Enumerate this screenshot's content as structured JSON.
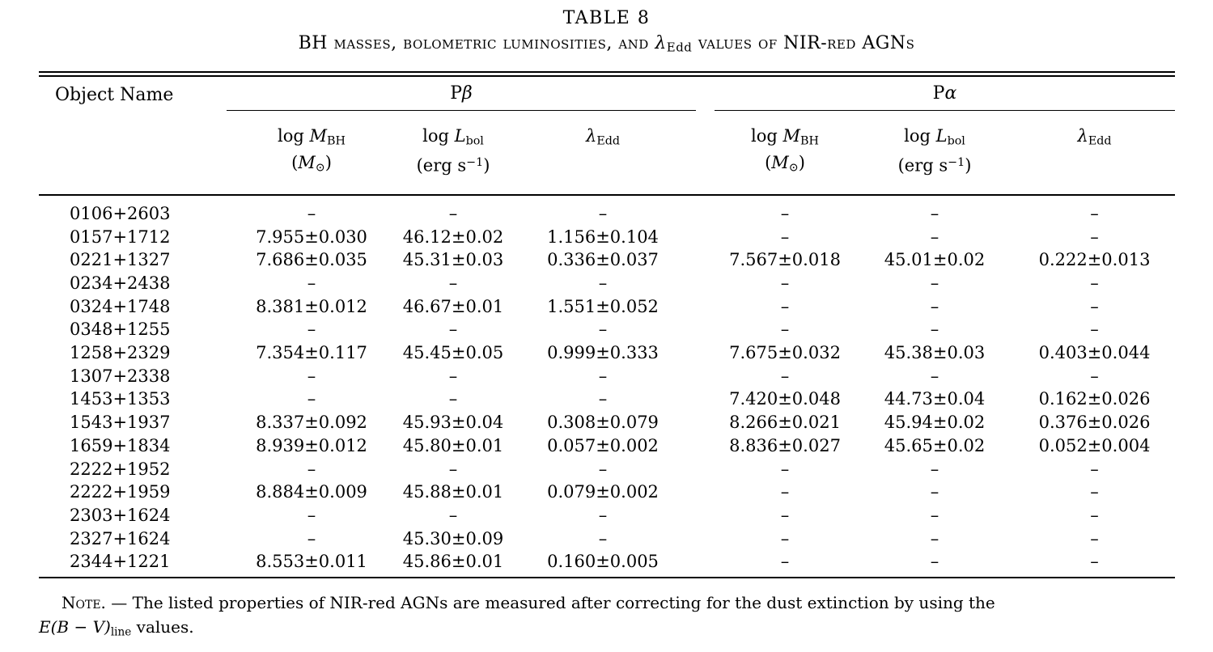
{
  "title": "TABLE 8",
  "subtitle": {
    "pre": "BH masses, bolometric luminosities, and ",
    "lambda": "λ",
    "lambda_sub": "Edd",
    "post": " values of NIR-red AGNs"
  },
  "columns": {
    "object": "Object Name",
    "group_pb": {
      "p": "P",
      "greek": "β"
    },
    "group_pa": {
      "p": "P",
      "greek": "α"
    },
    "mbh": {
      "log": "log ",
      "sym": "M",
      "sub": "BH"
    },
    "mbh_unit": {
      "open": "(",
      "sym": "M",
      "sub": "⊙",
      "close": ")"
    },
    "lbol": {
      "log": "log ",
      "sym": "L",
      "sub": "bol"
    },
    "lbol_unit": {
      "open": "(erg s",
      "sup": "−1",
      "close": ")"
    },
    "edd": {
      "sym": "λ",
      "sub": "Edd"
    }
  },
  "nodata": "–",
  "rows": [
    {
      "name": "0106+2603",
      "pb": [
        "–",
        "–",
        "–"
      ],
      "pa": [
        "–",
        "–",
        "–"
      ]
    },
    {
      "name": "0157+1712",
      "pb": [
        "7.955±0.030",
        "46.12±0.02",
        "1.156±0.104"
      ],
      "pa": [
        "–",
        "–",
        "–"
      ]
    },
    {
      "name": "0221+1327",
      "pb": [
        "7.686±0.035",
        "45.31±0.03",
        "0.336±0.037"
      ],
      "pa": [
        "7.567±0.018",
        "45.01±0.02",
        "0.222±0.013"
      ]
    },
    {
      "name": "0234+2438",
      "pb": [
        "–",
        "–",
        "–"
      ],
      "pa": [
        "–",
        "–",
        "–"
      ]
    },
    {
      "name": "0324+1748",
      "pb": [
        "8.381±0.012",
        "46.67±0.01",
        "1.551±0.052"
      ],
      "pa": [
        "–",
        "–",
        "–"
      ]
    },
    {
      "name": "0348+1255",
      "pb": [
        "–",
        "–",
        "–"
      ],
      "pa": [
        "–",
        "–",
        "–"
      ]
    },
    {
      "name": "1258+2329",
      "pb": [
        "7.354±0.117",
        "45.45±0.05",
        "0.999±0.333"
      ],
      "pa": [
        "7.675±0.032",
        "45.38±0.03",
        "0.403±0.044"
      ]
    },
    {
      "name": "1307+2338",
      "pb": [
        "–",
        "–",
        "–"
      ],
      "pa": [
        "–",
        "–",
        "–"
      ]
    },
    {
      "name": "1453+1353",
      "pb": [
        "–",
        "–",
        "–"
      ],
      "pa": [
        "7.420±0.048",
        "44.73±0.04",
        "0.162±0.026"
      ]
    },
    {
      "name": "1543+1937",
      "pb": [
        "8.337±0.092",
        "45.93±0.04",
        "0.308±0.079"
      ],
      "pa": [
        "8.266±0.021",
        "45.94±0.02",
        "0.376±0.026"
      ]
    },
    {
      "name": "1659+1834",
      "pb": [
        "8.939±0.012",
        "45.80±0.01",
        "0.057±0.002"
      ],
      "pa": [
        "8.836±0.027",
        "45.65±0.02",
        "0.052±0.004"
      ]
    },
    {
      "name": "2222+1952",
      "pb": [
        "–",
        "–",
        "–"
      ],
      "pa": [
        "–",
        "–",
        "–"
      ]
    },
    {
      "name": "2222+1959",
      "pb": [
        "8.884±0.009",
        "45.88±0.01",
        "0.079±0.002"
      ],
      "pa": [
        "–",
        "–",
        "–"
      ]
    },
    {
      "name": "2303+1624",
      "pb": [
        "–",
        "–",
        "–"
      ],
      "pa": [
        "–",
        "–",
        "–"
      ]
    },
    {
      "name": "2327+1624",
      "pb": [
        "–",
        "45.30±0.09",
        "–"
      ],
      "pa": [
        "–",
        "–",
        "–"
      ]
    },
    {
      "name": "2344+1221",
      "pb": [
        "8.553±0.011",
        "45.86±0.01",
        "0.160±0.005"
      ],
      "pa": [
        "–",
        "–",
        "–"
      ]
    }
  ],
  "note": {
    "lead": "Note. — ",
    "body": "The listed properties of NIR-red AGNs are measured after correcting for the dust extinction by using the",
    "ebv": "E(B − V)",
    "ebv_sub": "line",
    "tail": " values."
  }
}
